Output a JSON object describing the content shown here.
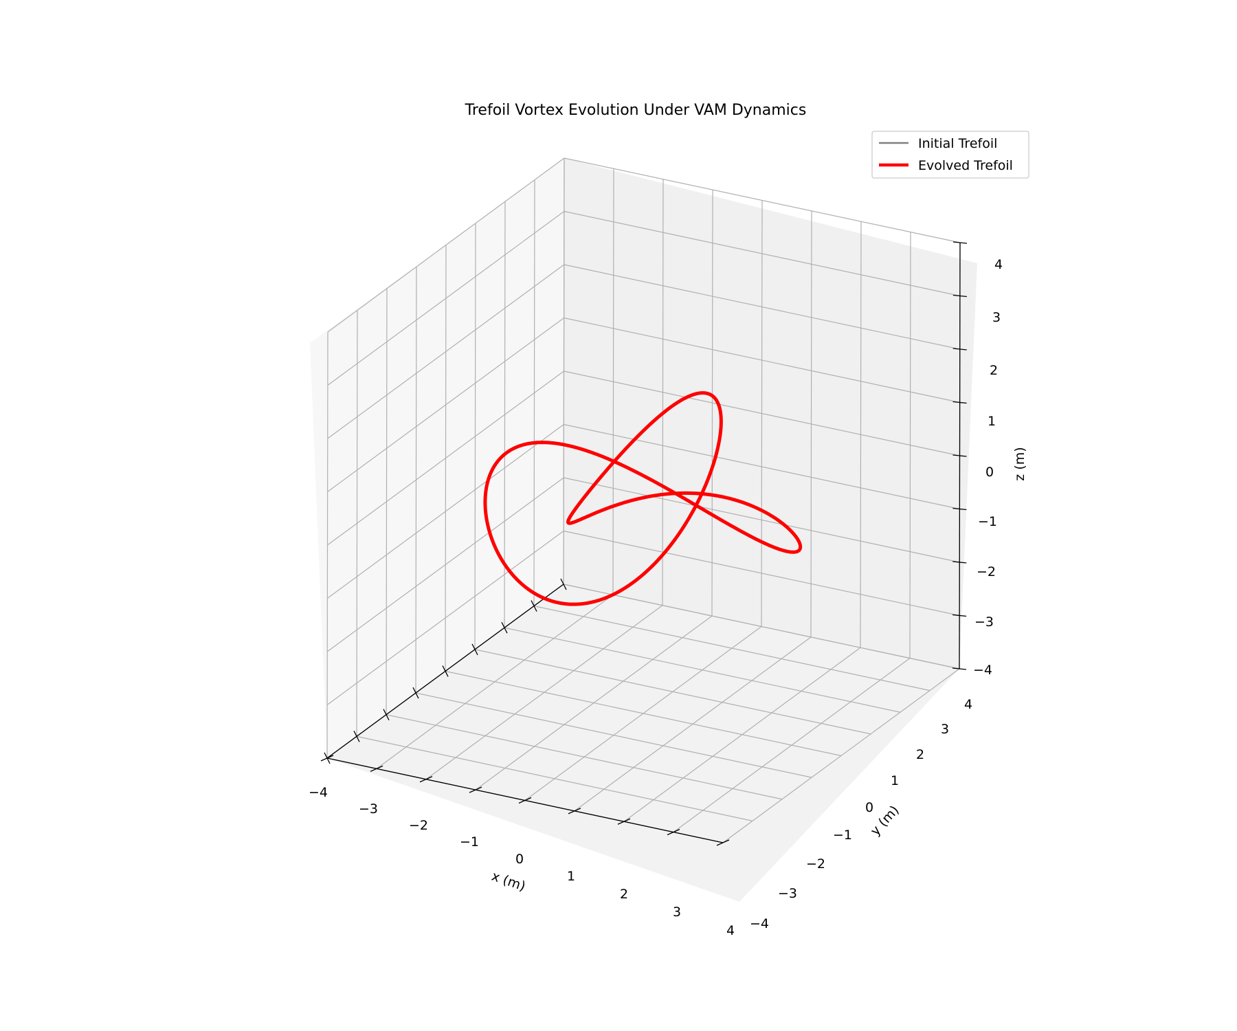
{
  "chart_data": {
    "type": "line3d",
    "title": "Trefoil Vortex Evolution Under VAM Dynamics",
    "xlabel": "x (m)",
    "ylabel": "y (m)",
    "zlabel": "z (m)",
    "xlim": [
      -4,
      4
    ],
    "ylim": [
      -4,
      4
    ],
    "zlim": [
      -4,
      4
    ],
    "xticks": [
      "−4",
      "−3",
      "−2",
      "−1",
      "0",
      "1",
      "2",
      "3",
      "4"
    ],
    "yticks": [
      "−4",
      "−3",
      "−2",
      "−1",
      "0",
      "1",
      "2",
      "3",
      "4"
    ],
    "zticks": [
      "−4",
      "−3",
      "−2",
      "−1",
      "0",
      "1",
      "2",
      "3",
      "4"
    ],
    "grid": true,
    "legend_position": "top-right",
    "series": [
      {
        "name": "Initial Trefoil",
        "color": "#808080",
        "param": "trefoil: x=sin t+2 sin 2t, y=cos t-2 cos 2t, z=-sin 3t"
      },
      {
        "name": "Evolved Trefoil",
        "color": "#ff0000",
        "param": "trefoil: x=sin t+2 sin 2t, y=cos t-2 cos 2t, z=-sin 3t"
      }
    ]
  }
}
